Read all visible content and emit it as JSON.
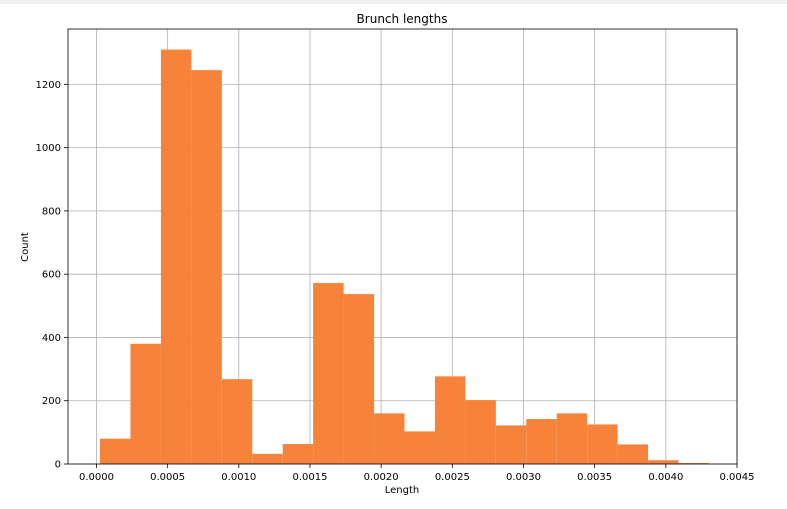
{
  "chart_data": {
    "type": "bar",
    "title": "Brunch lengths",
    "xlabel": "Length",
    "ylabel": "Count",
    "xlim": [
      -0.0002,
      0.0045
    ],
    "ylim": [
      0,
      1375
    ],
    "grid": true,
    "bar_color": "#f7823a",
    "x_ticks": [
      {
        "value": 0.0,
        "label": "0.0000"
      },
      {
        "value": 0.0005,
        "label": "0.0005"
      },
      {
        "value": 0.001,
        "label": "0.0010"
      },
      {
        "value": 0.0015,
        "label": "0.0015"
      },
      {
        "value": 0.002,
        "label": "0.0020"
      },
      {
        "value": 0.0025,
        "label": "0.0025"
      },
      {
        "value": 0.003,
        "label": "0.0030"
      },
      {
        "value": 0.0035,
        "label": "0.0035"
      },
      {
        "value": 0.004,
        "label": "0.0040"
      },
      {
        "value": 0.0045,
        "label": "0.0045"
      }
    ],
    "y_ticks": [
      {
        "value": 0,
        "label": "0"
      },
      {
        "value": 200,
        "label": "200"
      },
      {
        "value": 400,
        "label": "400"
      },
      {
        "value": 600,
        "label": "600"
      },
      {
        "value": 800,
        "label": "800"
      },
      {
        "value": 1000,
        "label": "1000"
      },
      {
        "value": 1200,
        "label": "1200"
      }
    ],
    "bins": [
      {
        "x0": 2.5e-05,
        "x1": 0.0002389,
        "count": 80
      },
      {
        "x0": 0.0002389,
        "x1": 0.0004528,
        "count": 380
      },
      {
        "x0": 0.0004528,
        "x1": 0.0006667,
        "count": 1310
      },
      {
        "x0": 0.0006667,
        "x1": 0.0008806,
        "count": 1245
      },
      {
        "x0": 0.0008806,
        "x1": 0.0010945,
        "count": 268
      },
      {
        "x0": 0.0010945,
        "x1": 0.0013084,
        "count": 32
      },
      {
        "x0": 0.0013084,
        "x1": 0.0015223,
        "count": 63
      },
      {
        "x0": 0.0015223,
        "x1": 0.0017362,
        "count": 572
      },
      {
        "x0": 0.0017362,
        "x1": 0.0019501,
        "count": 537
      },
      {
        "x0": 0.0019501,
        "x1": 0.002164,
        "count": 160
      },
      {
        "x0": 0.002164,
        "x1": 0.0023779,
        "count": 103
      },
      {
        "x0": 0.0023779,
        "x1": 0.0025918,
        "count": 277
      },
      {
        "x0": 0.0025918,
        "x1": 0.0028057,
        "count": 202
      },
      {
        "x0": 0.0028057,
        "x1": 0.0030196,
        "count": 122
      },
      {
        "x0": 0.0030196,
        "x1": 0.0032335,
        "count": 142
      },
      {
        "x0": 0.0032335,
        "x1": 0.0034474,
        "count": 160
      },
      {
        "x0": 0.0034474,
        "x1": 0.0036613,
        "count": 125
      },
      {
        "x0": 0.0036613,
        "x1": 0.0038752,
        "count": 62
      },
      {
        "x0": 0.0038752,
        "x1": 0.0040891,
        "count": 12
      },
      {
        "x0": 0.0040891,
        "x1": 0.004303,
        "count": 3
      }
    ]
  }
}
